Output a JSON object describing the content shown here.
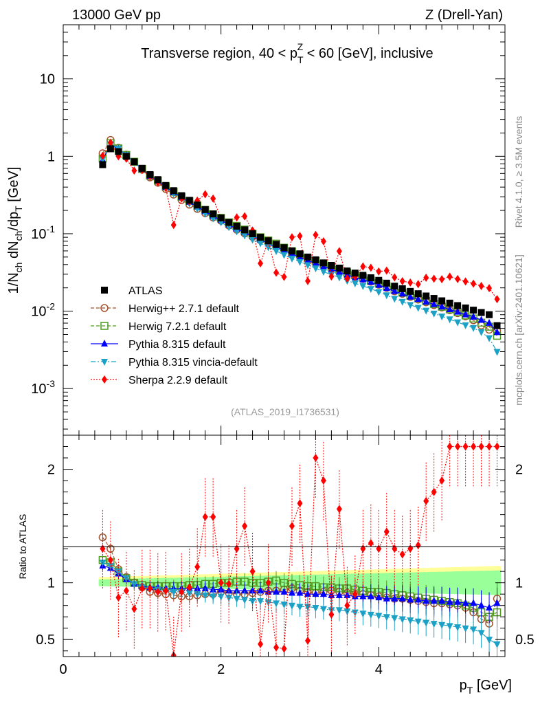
{
  "header": {
    "left": "13000 GeV pp",
    "right": "Z (Drell-Yan)"
  },
  "side_labels": {
    "rivet": "Rivet 4.1.0, ≥ 3.5M events",
    "mcplots": "mcplots.cern.ch [arXiv:2401.10621]"
  },
  "chart_data": [
    {
      "type": "scatter",
      "panel": "main",
      "title": "Transverse region, 40 < p_T^Z < 60 [GeV], inclusive",
      "watermark": "(ATLAS_2019_I1736531)",
      "ylabel": "1/N_ch dN_ch/dp_T [GeV]",
      "yscale": "log",
      "xlim": [
        0,
        5.6
      ],
      "ylim": [
        0.00025,
        50
      ],
      "y_tick_labels": [
        "10^-3",
        "10^-2",
        "10^-1",
        "1",
        "10"
      ],
      "x": [
        0.5,
        0.6,
        0.7,
        0.8,
        0.9,
        1.0,
        1.1,
        1.2,
        1.3,
        1.4,
        1.5,
        1.6,
        1.7,
        1.8,
        1.9,
        2.0,
        2.1,
        2.2,
        2.3,
        2.4,
        2.5,
        2.6,
        2.7,
        2.8,
        2.9,
        3.0,
        3.1,
        3.2,
        3.3,
        3.4,
        3.5,
        3.6,
        3.7,
        3.8,
        3.9,
        4.0,
        4.1,
        4.2,
        4.3,
        4.4,
        4.5,
        4.6,
        4.7,
        4.8,
        4.9,
        5.0,
        5.1,
        5.2,
        5.3,
        5.4,
        5.5
      ],
      "legend": [
        {
          "name": "ATLAS",
          "marker": "square-filled",
          "color": "#000000",
          "line": "none"
        },
        {
          "name": "Herwig++ 2.7.1 default",
          "marker": "circle-open",
          "color": "#a0522d",
          "line": "dashed"
        },
        {
          "name": "Herwig 7.2.1 default",
          "marker": "square-open",
          "color": "#4f9a1f",
          "line": "dashed"
        },
        {
          "name": "Pythia 8.315 default",
          "marker": "triangle-up",
          "color": "#0000ff",
          "line": "solid"
        },
        {
          "name": "Pythia 8.315 vincia-default",
          "marker": "triangle-down",
          "color": "#1aa1c5",
          "line": "dashdot"
        },
        {
          "name": "Sherpa 2.2.9 default",
          "marker": "diamond",
          "color": "#ff0000",
          "line": "dotted"
        }
      ],
      "atlas": [
        0.78,
        1.25,
        1.15,
        1.0,
        0.85,
        0.7,
        0.58,
        0.5,
        0.42,
        0.36,
        0.31,
        0.27,
        0.235,
        0.205,
        0.18,
        0.16,
        0.14,
        0.125,
        0.112,
        0.1,
        0.09,
        0.081,
        0.073,
        0.066,
        0.06,
        0.055,
        0.05,
        0.046,
        0.042,
        0.039,
        0.036,
        0.033,
        0.031,
        0.029,
        0.027,
        0.025,
        0.023,
        0.021,
        0.0195,
        0.018,
        0.0168,
        0.0157,
        0.0146,
        0.0136,
        0.0127,
        0.0118,
        0.011,
        0.0103,
        0.0096,
        0.009,
        0.0065
      ]
    },
    {
      "type": "scatter",
      "panel": "ratio",
      "ylabel": "Ratio to ATLAS",
      "xlabel": "p_T [GeV]",
      "xlim": [
        0,
        5.6
      ],
      "ylim": [
        0.35,
        2.3
      ],
      "x_ticks": [
        0,
        2,
        4
      ],
      "y_ticks": [
        0.5,
        1,
        2
      ],
      "band_inner_color": "#99ff99",
      "band_outer_color": "#ffff99",
      "series": [
        {
          "name": "Herwig++ 2.7.1 default",
          "values": [
            1.4,
            1.3,
            1.12,
            1.05,
            1.0,
            0.96,
            0.92,
            0.91,
            0.9,
            0.89,
            0.88,
            0.88,
            0.89,
            0.9,
            0.9,
            0.92,
            0.91,
            0.9,
            0.9,
            0.91,
            0.92,
            0.93,
            0.93,
            0.94,
            0.95,
            0.93,
            0.92,
            0.91,
            0.92,
            0.93,
            0.92,
            0.91,
            0.9,
            0.9,
            0.89,
            0.88,
            0.87,
            0.86,
            0.86,
            0.85,
            0.84,
            0.83,
            0.82,
            0.82,
            0.81,
            0.8,
            0.78,
            0.74,
            0.68,
            0.64,
            0.86
          ]
        },
        {
          "name": "Herwig 7.2.1 default",
          "values": [
            1.2,
            1.18,
            1.1,
            1.04,
            1.0,
            0.98,
            0.97,
            0.97,
            0.97,
            0.97,
            0.97,
            0.98,
            0.98,
            0.99,
            0.99,
            1.0,
            1.0,
            1.01,
            1.01,
            1.0,
            1.0,
            1.01,
            1.02,
            1.0,
            0.99,
            0.98,
            0.97,
            0.97,
            0.96,
            0.96,
            0.95,
            0.95,
            0.94,
            0.93,
            0.92,
            0.92,
            0.91,
            0.9,
            0.89,
            0.88,
            0.87,
            0.86,
            0.85,
            0.84,
            0.83,
            0.82,
            0.8,
            0.78,
            0.74,
            0.7,
            0.74
          ]
        },
        {
          "name": "Pythia 8.315 default",
          "values": [
            1.15,
            1.13,
            1.08,
            1.03,
            0.99,
            0.97,
            0.96,
            0.96,
            0.95,
            0.95,
            0.95,
            0.95,
            0.95,
            0.95,
            0.94,
            0.94,
            0.93,
            0.93,
            0.93,
            0.93,
            0.93,
            0.92,
            0.92,
            0.92,
            0.91,
            0.91,
            0.9,
            0.9,
            0.9,
            0.89,
            0.89,
            0.89,
            0.88,
            0.88,
            0.88,
            0.87,
            0.86,
            0.86,
            0.86,
            0.85,
            0.85,
            0.84,
            0.84,
            0.84,
            0.83,
            0.83,
            0.82,
            0.82,
            0.8,
            0.78,
            0.82
          ]
        },
        {
          "name": "Pythia 8.315 vincia-default",
          "values": [
            1.18,
            1.15,
            1.1,
            1.04,
            0.99,
            0.96,
            0.95,
            0.94,
            0.93,
            0.92,
            0.92,
            0.91,
            0.9,
            0.89,
            0.88,
            0.88,
            0.87,
            0.86,
            0.85,
            0.84,
            0.84,
            0.83,
            0.82,
            0.81,
            0.8,
            0.79,
            0.79,
            0.78,
            0.77,
            0.76,
            0.76,
            0.75,
            0.74,
            0.73,
            0.72,
            0.71,
            0.7,
            0.69,
            0.68,
            0.67,
            0.66,
            0.65,
            0.64,
            0.63,
            0.62,
            0.61,
            0.6,
            0.59,
            0.56,
            0.5,
            0.46
          ]
        },
        {
          "name": "Sherpa 2.2.9 default",
          "values": [
            1.3,
            1.2,
            0.87,
            0.93,
            0.77,
            0.95,
            0.95,
            0.92,
            0.93,
            0.36,
            0.92,
            0.96,
            1.14,
            1.58,
            1.58,
            1.0,
            0.99,
            1.3,
            1.5,
            1.1,
            0.46,
            1.0,
            0.43,
            0.42,
            1.5,
            1.7,
            0.49,
            2.1,
            1.9,
            0.72,
            1.65,
            0.8,
            0.9,
            1.3,
            1.35,
            1.3,
            1.45,
            1.3,
            1.25,
            1.3,
            1.33,
            1.72,
            1.8,
            1.9,
            2.2,
            2.2,
            2.2,
            2.2,
            2.2,
            2.2,
            2.2
          ]
        }
      ]
    }
  ]
}
